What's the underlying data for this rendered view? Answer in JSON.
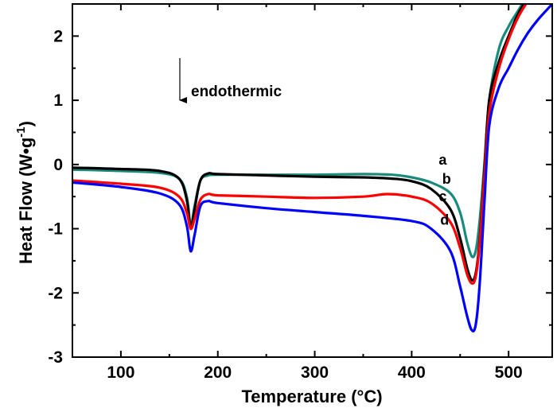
{
  "chart_data": {
    "type": "line",
    "title": "",
    "xlabel": "Temperature (°C)",
    "ylabel_main": "Heat Flow (W•g",
    "ylabel_sup": "-1",
    "ylabel_close": ")",
    "xlim": [
      50,
      545
    ],
    "ylim": [
      -3,
      2.5
    ],
    "xticks": [
      100,
      200,
      300,
      400,
      500
    ],
    "yticks": [
      -3,
      -2,
      -1,
      0,
      1,
      2
    ],
    "grid": false,
    "annotation": "endothermic",
    "series": [
      {
        "name": "a",
        "color": "#1a8a7e",
        "label_at": [
          432,
          0.0
        ],
        "x": [
          50,
          100,
          140,
          160,
          168,
          172,
          176,
          182,
          190,
          200,
          250,
          300,
          350,
          380,
          400,
          420,
          440,
          450,
          457,
          462,
          466,
          470,
          475,
          480,
          490,
          500,
          510,
          520
        ],
        "y": [
          -0.08,
          -0.1,
          -0.13,
          -0.22,
          -0.5,
          -0.95,
          -0.65,
          -0.25,
          -0.17,
          -0.16,
          -0.16,
          -0.16,
          -0.15,
          -0.16,
          -0.2,
          -0.28,
          -0.45,
          -0.75,
          -1.2,
          -1.43,
          -1.35,
          -0.9,
          0.0,
          1.0,
          1.8,
          2.15,
          2.4,
          2.65
        ]
      },
      {
        "name": "b",
        "color": "#000000",
        "label_at": [
          436,
          -0.3
        ],
        "x": [
          50,
          100,
          140,
          160,
          168,
          172,
          176,
          182,
          190,
          200,
          250,
          300,
          350,
          380,
          400,
          420,
          440,
          450,
          457,
          462,
          466,
          470,
          475,
          480,
          490,
          500,
          510,
          520
        ],
        "y": [
          -0.05,
          -0.07,
          -0.1,
          -0.22,
          -0.55,
          -1.0,
          -0.7,
          -0.25,
          -0.14,
          -0.15,
          -0.17,
          -0.19,
          -0.2,
          -0.22,
          -0.26,
          -0.38,
          -0.7,
          -1.15,
          -1.6,
          -1.8,
          -1.7,
          -1.2,
          -0.1,
          1.0,
          1.6,
          2.0,
          2.35,
          2.6
        ]
      },
      {
        "name": "c",
        "color": "#ff0000",
        "label_at": [
          432,
          -0.57
        ],
        "x": [
          50,
          100,
          140,
          160,
          168,
          172,
          176,
          182,
          190,
          200,
          250,
          300,
          350,
          375,
          400,
          420,
          440,
          450,
          457,
          462,
          466,
          470,
          475,
          480,
          490,
          500,
          510,
          520
        ],
        "y": [
          -0.25,
          -0.3,
          -0.36,
          -0.5,
          -0.75,
          -1.0,
          -0.85,
          -0.55,
          -0.46,
          -0.48,
          -0.5,
          -0.52,
          -0.5,
          -0.46,
          -0.5,
          -0.6,
          -0.9,
          -1.3,
          -1.7,
          -1.85,
          -1.75,
          -1.25,
          -0.2,
          0.8,
          1.5,
          1.95,
          2.3,
          2.55
        ]
      },
      {
        "name": "d",
        "color": "#0000ff",
        "label_at": [
          434,
          -0.94
        ],
        "x": [
          50,
          100,
          140,
          160,
          168,
          172,
          176,
          182,
          190,
          200,
          250,
          300,
          350,
          400,
          420,
          440,
          450,
          457,
          462,
          466,
          470,
          475,
          480,
          490,
          500,
          510,
          520,
          530,
          545
        ],
        "y": [
          -0.28,
          -0.35,
          -0.45,
          -0.62,
          -0.95,
          -1.35,
          -1.1,
          -0.65,
          -0.57,
          -0.6,
          -0.68,
          -0.74,
          -0.8,
          -0.88,
          -1.0,
          -1.35,
          -1.9,
          -2.35,
          -2.58,
          -2.5,
          -1.9,
          -0.6,
          0.6,
          1.2,
          1.5,
          1.8,
          2.05,
          2.25,
          2.5
        ]
      }
    ]
  }
}
